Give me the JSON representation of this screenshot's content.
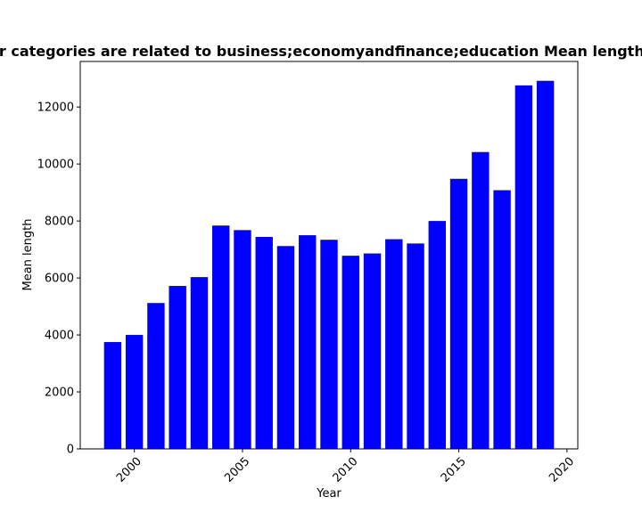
{
  "chart_data": {
    "type": "bar",
    "title": "Privacy policies that their categories are related to business;economyandfinance;education Mean length in privacy policies by Year",
    "xlabel": "Year",
    "ylabel": "Mean length",
    "x": [
      1999,
      2000,
      2001,
      2002,
      2003,
      2004,
      2005,
      2006,
      2007,
      2008,
      2009,
      2010,
      2011,
      2012,
      2013,
      2014,
      2015,
      2016,
      2017,
      2018,
      2019
    ],
    "values": [
      3750,
      4000,
      5120,
      5720,
      6030,
      7840,
      7680,
      7440,
      7120,
      7500,
      7340,
      6780,
      6860,
      7360,
      7210,
      8000,
      9480,
      10420,
      9080,
      12760,
      12920
    ],
    "xlim": [
      1997.5,
      2020.5
    ],
    "ylim": [
      0,
      13600
    ],
    "xticks": [
      2000,
      2005,
      2010,
      2015,
      2020
    ],
    "yticks": [
      0,
      2000,
      4000,
      6000,
      8000,
      10000,
      12000
    ],
    "bar_color": "#0000ff",
    "grid": false,
    "legend": "none"
  }
}
